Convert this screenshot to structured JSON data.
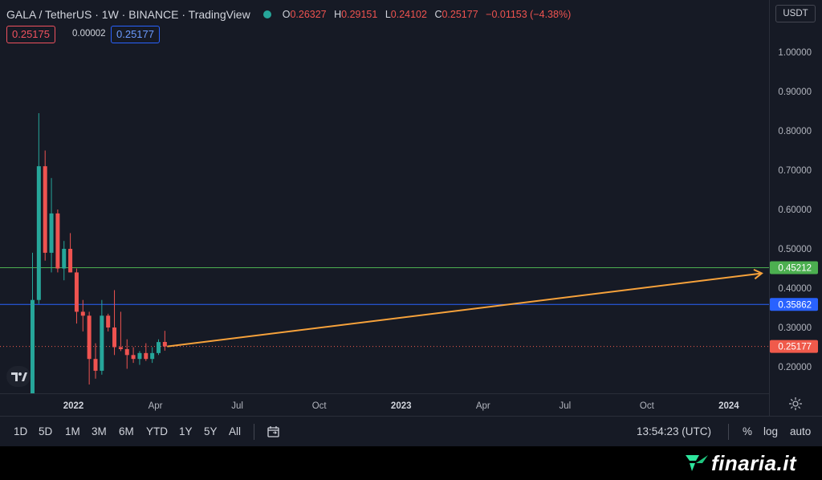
{
  "header": {
    "title": "GALA / TetherUS · 1W · BINANCE · TradingView",
    "ohlc": {
      "o_label": "O",
      "o": "0.26327",
      "h_label": "H",
      "h": "0.29151",
      "l_label": "L",
      "l": "0.24102",
      "c_label": "C",
      "c": "0.25177",
      "change": "−0.01153 (−4.38%)"
    },
    "sell_price": "0.25175",
    "spread": "0.00002",
    "buy_price": "0.25177",
    "currency": "USDT"
  },
  "bottom_bar": {
    "ranges": [
      "1D",
      "5D",
      "1M",
      "3M",
      "6M",
      "YTD",
      "1Y",
      "5Y",
      "All"
    ],
    "time": "13:54:23 (UTC)",
    "percent": "%",
    "log": "log",
    "auto": "auto"
  },
  "footer": {
    "brand": "finaria.it"
  },
  "colors": {
    "up": "#26a69a",
    "down": "#ef5350",
    "green_line": "#4caf50",
    "blue_line": "#2962ff",
    "arrow": "#f7a23b",
    "background": "#161a25"
  },
  "icons": [
    "tradingview-logo-icon",
    "compare-icon",
    "gear-icon",
    "finaria-logo-icon"
  ],
  "chart_data": {
    "type": "candlestick",
    "y_ticks": [
      "1.00000",
      "0.90000",
      "0.80000",
      "0.70000",
      "0.60000",
      "0.50000",
      "0.40000",
      "0.30000",
      "0.20000"
    ],
    "ylim": [
      0.13,
      1.1
    ],
    "x_ticks": [
      {
        "label": "2022",
        "index": 6.5,
        "bold": true
      },
      {
        "label": "Apr",
        "index": 19.5,
        "bold": false
      },
      {
        "label": "Jul",
        "index": 32.5,
        "bold": false
      },
      {
        "label": "Oct",
        "index": 45.5,
        "bold": false
      },
      {
        "label": "2023",
        "index": 58.5,
        "bold": true
      },
      {
        "label": "Apr",
        "index": 71.5,
        "bold": false
      },
      {
        "label": "Jul",
        "index": 84.5,
        "bold": false
      },
      {
        "label": "Oct",
        "index": 97.5,
        "bold": false
      },
      {
        "label": "2024",
        "index": 110.5,
        "bold": true
      }
    ],
    "candles": [
      {
        "o": 0.05,
        "h": 0.49,
        "l": 0.05,
        "c": 0.37
      },
      {
        "o": 0.37,
        "h": 0.845,
        "l": 0.36,
        "c": 0.71
      },
      {
        "o": 0.71,
        "h": 0.75,
        "l": 0.47,
        "c": 0.49
      },
      {
        "o": 0.49,
        "h": 0.68,
        "l": 0.44,
        "c": 0.59
      },
      {
        "o": 0.59,
        "h": 0.6,
        "l": 0.44,
        "c": 0.45
      },
      {
        "o": 0.45,
        "h": 0.52,
        "l": 0.42,
        "c": 0.5
      },
      {
        "o": 0.5,
        "h": 0.54,
        "l": 0.44,
        "c": 0.44
      },
      {
        "o": 0.44,
        "h": 0.45,
        "l": 0.31,
        "c": 0.34
      },
      {
        "o": 0.34,
        "h": 0.37,
        "l": 0.29,
        "c": 0.33
      },
      {
        "o": 0.33,
        "h": 0.34,
        "l": 0.155,
        "c": 0.22
      },
      {
        "o": 0.22,
        "h": 0.26,
        "l": 0.17,
        "c": 0.19
      },
      {
        "o": 0.19,
        "h": 0.37,
        "l": 0.18,
        "c": 0.33
      },
      {
        "o": 0.33,
        "h": 0.335,
        "l": 0.29,
        "c": 0.3
      },
      {
        "o": 0.3,
        "h": 0.395,
        "l": 0.23,
        "c": 0.25
      },
      {
        "o": 0.25,
        "h": 0.34,
        "l": 0.24,
        "c": 0.245
      },
      {
        "o": 0.245,
        "h": 0.27,
        "l": 0.195,
        "c": 0.23
      },
      {
        "o": 0.23,
        "h": 0.25,
        "l": 0.21,
        "c": 0.22
      },
      {
        "o": 0.22,
        "h": 0.24,
        "l": 0.205,
        "c": 0.235
      },
      {
        "o": 0.235,
        "h": 0.26,
        "l": 0.215,
        "c": 0.22
      },
      {
        "o": 0.22,
        "h": 0.25,
        "l": 0.21,
        "c": 0.235
      },
      {
        "o": 0.235,
        "h": 0.27,
        "l": 0.23,
        "c": 0.263
      },
      {
        "o": 0.26327,
        "h": 0.29151,
        "l": 0.24102,
        "c": 0.25177
      }
    ],
    "price_lines": [
      {
        "name": "green-level",
        "value": 0.45212,
        "label": "0.45212",
        "color": "#4caf50",
        "style": "solid"
      },
      {
        "name": "blue-level",
        "value": 0.35862,
        "label": "0.35862",
        "color": "#2962ff",
        "style": "solid"
      },
      {
        "name": "current-price",
        "value": 0.25177,
        "label": "0.25177",
        "color": "#f05a4b",
        "style": "dotted"
      }
    ],
    "trend_arrow": {
      "from_index": 21,
      "from_value": 0.25177,
      "to_index": 115,
      "to_value": 0.45212,
      "color": "#f7a23b"
    }
  }
}
